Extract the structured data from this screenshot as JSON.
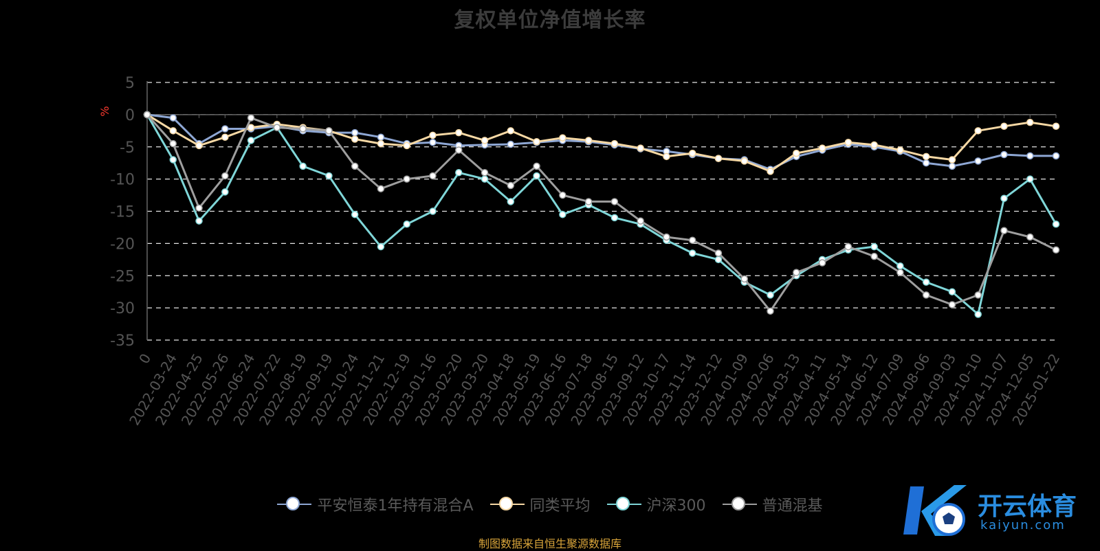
{
  "chart_data": {
    "type": "line",
    "title": "复权单位净值增长率",
    "ylabel": "%",
    "ylim": [
      -35,
      5
    ],
    "yticks": [
      5,
      0,
      -5,
      -10,
      -15,
      -20,
      -25,
      -30,
      -35
    ],
    "grid": true,
    "legend_position": "bottom",
    "x": [
      "0",
      "2022-03-24",
      "2022-04-25",
      "2022-05-26",
      "2022-06-24",
      "2022-07-22",
      "2022-08-19",
      "2022-09-19",
      "2022-10-24",
      "2022-11-21",
      "2022-12-19",
      "2023-01-16",
      "2023-02-20",
      "2023-03-20",
      "2023-04-18",
      "2023-05-19",
      "2023-06-16",
      "2023-07-18",
      "2023-08-15",
      "2023-09-12",
      "2023-10-17",
      "2023-11-14",
      "2023-12-12",
      "2024-01-09",
      "2024-02-06",
      "2024-03-13",
      "2024-04-11",
      "2024-05-14",
      "2024-06-12",
      "2024-07-09",
      "2024-08-06",
      "2024-09-03",
      "2024-10-10",
      "2024-11-07",
      "2024-12-05",
      "2025-01-22"
    ],
    "series": [
      {
        "name": "平安恒泰1年持有混合A",
        "color": "#8ea7d4",
        "values": [
          0,
          -0.5,
          -4.5,
          -2.2,
          -2.2,
          -1.8,
          -2.5,
          -2.8,
          -2.8,
          -3.5,
          -4.5,
          -4.3,
          -4.8,
          -4.7,
          -4.6,
          -4.3,
          -4.0,
          -4.2,
          -4.7,
          -5.3,
          -5.7,
          -6.2,
          -6.8,
          -7.0,
          -8.5,
          -6.5,
          -5.5,
          -4.6,
          -5.0,
          -5.7,
          -7.5,
          -8.0,
          -7.2,
          -6.2,
          -6.4,
          -6.4
        ]
      },
      {
        "name": "同类平均",
        "color": "#f6d8a4",
        "values": [
          0,
          -2.5,
          -4.8,
          -3.5,
          -2.0,
          -1.5,
          -2.0,
          -2.5,
          -3.8,
          -4.5,
          -4.8,
          -3.2,
          -2.8,
          -4.0,
          -2.5,
          -4.2,
          -3.6,
          -4.0,
          -4.5,
          -5.2,
          -6.5,
          -6.0,
          -6.8,
          -7.2,
          -8.8,
          -6.0,
          -5.2,
          -4.3,
          -4.7,
          -5.5,
          -6.5,
          -7.0,
          -2.5,
          -1.8,
          -1.2,
          -1.8
        ]
      },
      {
        "name": "沪深300",
        "color": "#7fd6d8",
        "values": [
          0,
          -7,
          -16.5,
          -12,
          -4,
          -2,
          -8,
          -9.5,
          -15.5,
          -20.5,
          -17,
          -15,
          -9,
          -10,
          -13.5,
          -9.5,
          -15.5,
          -14,
          -16,
          -17,
          -19.5,
          -21.5,
          -22.5,
          -26,
          -28,
          -25,
          -22.5,
          -21,
          -20.5,
          -23.5,
          -26,
          -27.5,
          -31,
          -13,
          -10,
          -17
        ]
      },
      {
        "name": "普通混基",
        "color": "#9e9e9e",
        "values": [
          0,
          -4.5,
          -14.5,
          -9.5,
          -0.5,
          -2,
          -2.2,
          -2.5,
          -8,
          -11.5,
          -10,
          -9.5,
          -5.5,
          -9,
          -11,
          -8,
          -12.5,
          -13.5,
          -13.5,
          -16.5,
          -19,
          -19.5,
          -21.5,
          -25.5,
          -30.5,
          -24.5,
          -23,
          -20.5,
          -22,
          -24.5,
          -28,
          -29.5,
          -28,
          -18,
          -19,
          -21
        ]
      }
    ]
  },
  "legend": {
    "items": [
      "平安恒泰1年持有混合A",
      "同类平均",
      "沪深300",
      "普通混基"
    ]
  },
  "source_note": "制图数据来自恒生聚源数据库",
  "watermark": {
    "brand": "开云体育",
    "domain": "kaiyun.com"
  }
}
